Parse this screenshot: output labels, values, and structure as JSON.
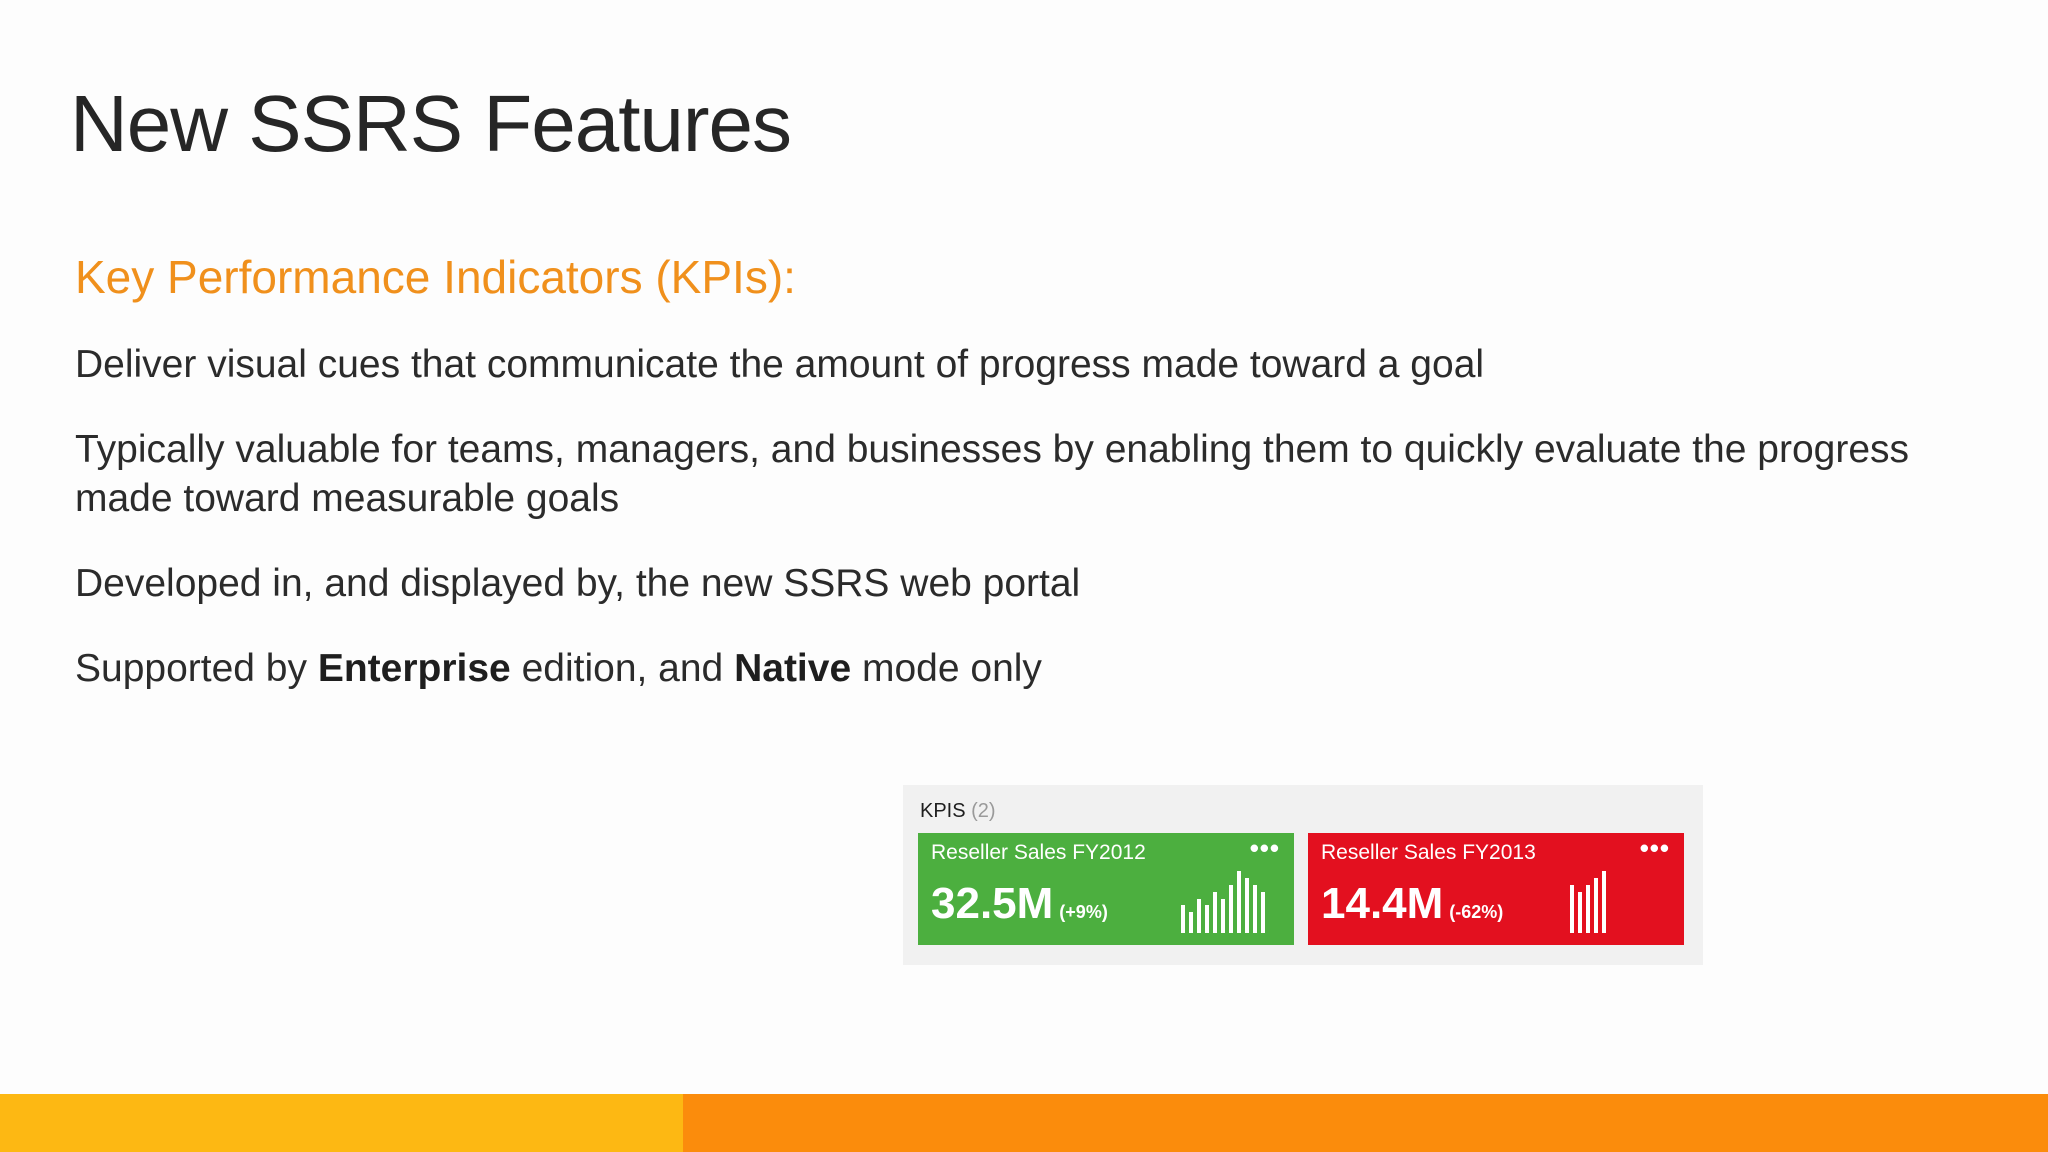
{
  "slide": {
    "title": "New SSRS Features",
    "subtitle": "Key Performance Indicators (KPIs):",
    "bullets": [
      "Deliver visual cues that communicate the amount of progress made toward a goal",
      "Typically valuable for teams, managers, and businesses by enabling them to quickly evaluate the progress made toward measurable goals",
      "Developed in, and displayed by, the new SSRS web portal"
    ],
    "last_bullet": {
      "part1": "Supported by ",
      "bold1": "Enterprise",
      "part2": " edition, and ",
      "bold2": "Native",
      "part3": " mode only"
    }
  },
  "kpis": {
    "header": "KPIS",
    "count": "(2)",
    "tiles": [
      {
        "name": "Reseller Sales FY2012",
        "value": "32.5M",
        "change": "(+9%)",
        "more_icon": "•••",
        "color": "#4caf3f",
        "trend": [
          4,
          3,
          5,
          4,
          6,
          5,
          7,
          9,
          8,
          7,
          6
        ]
      },
      {
        "name": "Reseller Sales FY2013",
        "value": "14.4M",
        "change": "(-62%)",
        "more_icon": "•••",
        "color": "#e3101f",
        "trend": [
          7,
          6,
          7,
          8,
          9
        ]
      }
    ]
  },
  "colors": {
    "accent_orange": "#f0901c",
    "footer_yellow": "#fdb813",
    "footer_orange": "#fb8c0c"
  }
}
